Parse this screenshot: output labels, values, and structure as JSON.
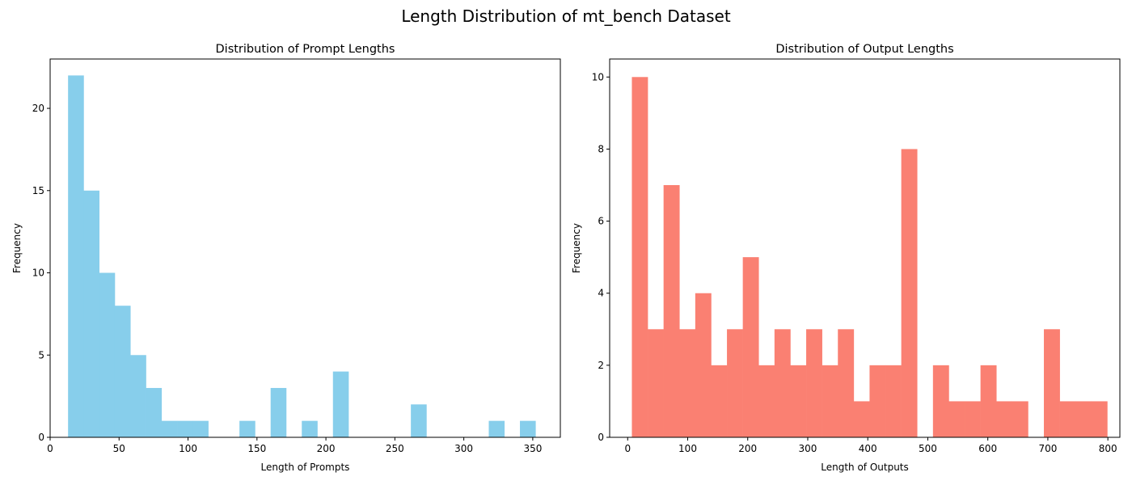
{
  "figure": {
    "title": "Length Distribution of mt_bench Dataset"
  },
  "chart_data": [
    {
      "type": "bar",
      "subtype": "histogram",
      "title": "Distribution of Prompt Lengths",
      "xlabel": "Length of Prompts",
      "ylabel": "Frequency",
      "color": "#87CEEB",
      "xlim": [
        0,
        370
      ],
      "ylim": [
        0,
        23
      ],
      "xticks": [
        0,
        50,
        100,
        150,
        200,
        250,
        300,
        350
      ],
      "yticks": [
        0,
        5,
        10,
        15,
        20
      ],
      "bin_edges": [
        13.0,
        24.3,
        35.6,
        46.9,
        58.2,
        69.5,
        80.8,
        92.1,
        103.4,
        114.7,
        126.0,
        137.3,
        148.6,
        159.9,
        171.2,
        182.5,
        193.8,
        205.1,
        216.4,
        227.7,
        239.0,
        250.3,
        261.6,
        272.9,
        284.2,
        295.5,
        306.8,
        318.1,
        329.4,
        340.7,
        352.0
      ],
      "counts": [
        22,
        15,
        10,
        8,
        5,
        3,
        1,
        1,
        1,
        0,
        0,
        1,
        0,
        3,
        0,
        1,
        0,
        4,
        0,
        0,
        0,
        0,
        2,
        0,
        0,
        0,
        0,
        1,
        0,
        1
      ]
    },
    {
      "type": "bar",
      "subtype": "histogram",
      "title": "Distribution of Output Lengths",
      "xlabel": "Length of Outputs",
      "ylabel": "Frequency",
      "color": "#FA8072",
      "xlim": [
        -30,
        820
      ],
      "ylim": [
        0,
        10.5
      ],
      "xticks": [
        0,
        100,
        200,
        300,
        400,
        500,
        600,
        700,
        800
      ],
      "yticks": [
        0,
        2,
        4,
        6,
        8,
        10
      ],
      "bin_edges": [
        7.0,
        33.4,
        59.8,
        86.2,
        112.6,
        139.0,
        165.4,
        191.8,
        218.2,
        244.6,
        271.0,
        297.4,
        323.8,
        350.2,
        376.6,
        403.0,
        429.4,
        455.8,
        482.2,
        508.6,
        535.0,
        561.4,
        587.8,
        614.2,
        640.6,
        667.0,
        693.4,
        719.8,
        746.2,
        772.6,
        799.0
      ],
      "counts": [
        10,
        3,
        7,
        3,
        4,
        2,
        3,
        5,
        2,
        3,
        2,
        3,
        2,
        3,
        1,
        2,
        2,
        8,
        0,
        2,
        1,
        1,
        2,
        1,
        1,
        0,
        3,
        1,
        1,
        1
      ]
    }
  ]
}
